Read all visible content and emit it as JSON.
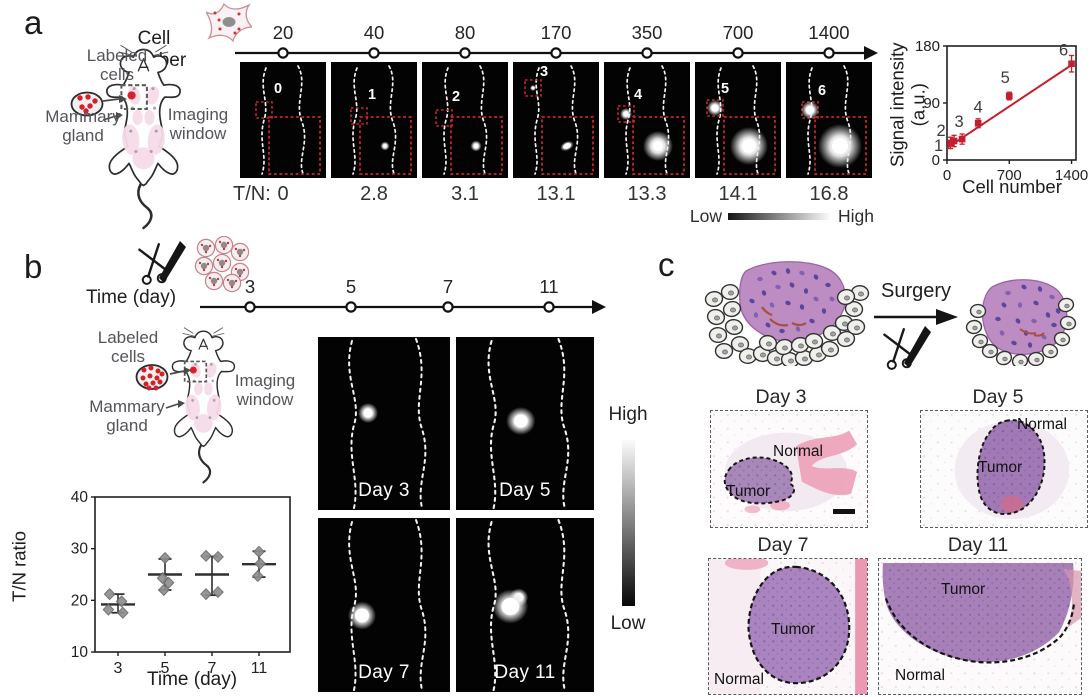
{
  "panel_a": {
    "label": "a",
    "axis_title": "Cell number",
    "timeline_values": [
      "20",
      "40",
      "80",
      "170",
      "350",
      "700",
      "1400"
    ],
    "labeled_cells": "Labeled\ncells",
    "mammary_gland": "Mammary\ngland",
    "imaging_window": "Imaging\nwindow",
    "tn_prefix": "T/N:",
    "tiles": [
      {
        "num": "0",
        "tn": "0"
      },
      {
        "num": "1",
        "tn": "2.8"
      },
      {
        "num": "2",
        "tn": "3.1"
      },
      {
        "num": "3",
        "tn": "13.1"
      },
      {
        "num": "4",
        "tn": "13.3"
      },
      {
        "num": "5",
        "tn": "14.1"
      },
      {
        "num": "6",
        "tn": "16.8"
      }
    ],
    "colorbar": {
      "low": "Low",
      "high": "High"
    }
  },
  "panel_b": {
    "label": "b",
    "axis_title": "Time (day)",
    "timeline_values": [
      "3",
      "5",
      "7",
      "11"
    ],
    "labeled_cells": "Labeled\ncells",
    "mammary_gland": "Mammary\ngland",
    "imaging_window": "Imaging\nwindow",
    "tiles": [
      {
        "label": "Day 3"
      },
      {
        "label": "Day 5"
      },
      {
        "label": "Day 7"
      },
      {
        "label": "Day 11"
      }
    ],
    "colorbar": {
      "high": "High",
      "low": "Low"
    }
  },
  "panel_c": {
    "label": "c",
    "surgery_label": "Surgery",
    "histology": [
      {
        "title": "Day 3",
        "normal": "Normal",
        "tumor": "Tumor"
      },
      {
        "title": "Day 5",
        "normal": "Normal",
        "tumor": "Tumor"
      },
      {
        "title": "Day 7",
        "normal": "Normal",
        "tumor": "Tumor"
      },
      {
        "title": "Day 11",
        "normal": "Normal",
        "tumor": "Tumor"
      }
    ]
  },
  "chart_data": [
    {
      "id": "signal_intensity",
      "type": "scatter",
      "xlabel": "Cell number",
      "ylabel": "Signal intensity\n(a.u.)",
      "xlim": [
        0,
        1450
      ],
      "ylim": [
        0,
        180
      ],
      "xticks": [
        0,
        700,
        1400
      ],
      "yticks": [
        0,
        90,
        180
      ],
      "accent_color": "#c51f2d",
      "points": [
        {
          "label": "1",
          "x": 40,
          "y": 27,
          "err": 9
        },
        {
          "label": "2",
          "x": 80,
          "y": 30,
          "err": 9
        },
        {
          "label": "3",
          "x": 170,
          "y": 33,
          "err": 8
        },
        {
          "label": "4",
          "x": 350,
          "y": 58,
          "err": 7
        },
        {
          "label": "5",
          "x": 700,
          "y": 101,
          "err": 6
        },
        {
          "label": "6",
          "x": 1400,
          "y": 152,
          "err": 13
        }
      ],
      "fit_line": {
        "x1": 10,
        "y1": 20,
        "x2": 1400,
        "y2": 150
      }
    },
    {
      "id": "tn_ratio",
      "type": "scatter",
      "xlabel": "Time (day)",
      "ylabel": "T/N ratio",
      "ylim": [
        10,
        40
      ],
      "yticks": [
        10,
        20,
        30,
        40
      ],
      "categories": [
        "3",
        "5",
        "7",
        "11"
      ],
      "marker_color": "#8f8f8f",
      "groups": [
        {
          "day": "3",
          "mean": 19.2,
          "lo": 17.6,
          "hi": 21.2,
          "points": [
            [
              -7,
              21.2
            ],
            [
              3,
              19.8
            ],
            [
              -8,
              18.2
            ],
            [
              4,
              17.6
            ]
          ]
        },
        {
          "day": "5",
          "mean": 25.0,
          "lo": 22.0,
          "hi": 28.0,
          "points": [
            [
              0,
              28.2
            ],
            [
              -2,
              24.3
            ],
            [
              3,
              23.4
            ],
            [
              -1,
              22.0
            ]
          ]
        },
        {
          "day": "7",
          "mean": 25.0,
          "lo": 21.0,
          "hi": 28.5,
          "points": [
            [
              -5,
              28.6
            ],
            [
              5,
              28.4
            ],
            [
              5,
              21.6
            ],
            [
              -5,
              21.2
            ]
          ]
        },
        {
          "day": "11",
          "mean": 27.0,
          "lo": 24.5,
          "hi": 29.5,
          "points": [
            [
              0,
              29.4
            ],
            [
              1,
              27.1
            ],
            [
              -1,
              24.7
            ]
          ]
        }
      ]
    }
  ]
}
